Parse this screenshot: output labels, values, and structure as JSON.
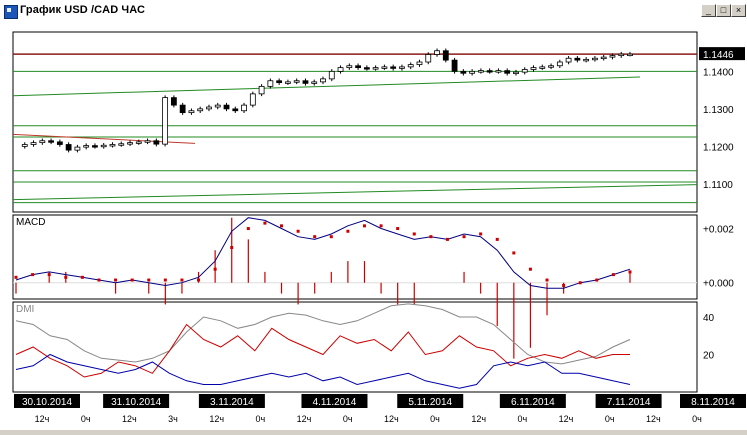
{
  "window": {
    "title": "График USD /CAD  ЧАС",
    "buttons": [
      "_",
      "□",
      "×"
    ]
  },
  "chart_data": [
    {
      "type": "candlestick",
      "title": "",
      "ylim": [
        1.1025,
        1.1505
      ],
      "yticks": [
        1.11,
        1.12,
        1.13,
        1.14
      ],
      "ytick_labels": [
        "1.1100",
        "1.1200",
        "1.1300",
        "1.1400"
      ],
      "current_price": 1.1446,
      "current_price_label": "1.1446",
      "colors": {
        "price_line": "#8b1a1a",
        "level_lines": "#228b22",
        "red_trend": "#c0392b",
        "candles": "#000000"
      },
      "price_path": [
        1.12,
        1.1205,
        1.121,
        1.1215,
        1.1212,
        1.1205,
        1.119,
        1.1198,
        1.1202,
        1.12,
        1.1203,
        1.1205,
        1.1207,
        1.121,
        1.1212,
        1.1215,
        1.1206,
        1.133,
        1.131,
        1.129,
        1.1295,
        1.13,
        1.1305,
        1.131,
        1.13,
        1.1295,
        1.131,
        1.134,
        1.136,
        1.1375,
        1.137,
        1.1372,
        1.1375,
        1.1368,
        1.1372,
        1.138,
        1.14,
        1.141,
        1.1415,
        1.141,
        1.1408,
        1.141,
        1.1412,
        1.1408,
        1.1412,
        1.1418,
        1.1425,
        1.1445,
        1.1455,
        1.143,
        1.14,
        1.1395,
        1.14,
        1.1402,
        1.14,
        1.1402,
        1.1395,
        1.1398,
        1.1405,
        1.141,
        1.1412,
        1.1415,
        1.1425,
        1.1435,
        1.143,
        1.1432,
        1.1435,
        1.1438,
        1.1442,
        1.1446,
        1.1446
      ],
      "horizontal_levels": [
        1.1446,
        1.14,
        1.1255,
        1.1225,
        1.1135,
        1.1105,
        1.105
      ]
    },
    {
      "type": "macd",
      "label": "MACD",
      "ylim": [
        -0.0006,
        0.0025
      ],
      "yticks": [
        0.002,
        0.0
      ],
      "ytick_labels": [
        "+0.002",
        "+0.000"
      ],
      "macd": [
        0.0001,
        0.0003,
        0.0004,
        0.0003,
        0.0002,
        0.0001,
        0.0,
        0.0001,
        0.0,
        -0.0001,
        0.0,
        0.0002,
        0.0008,
        0.0019,
        0.0024,
        0.0023,
        0.002,
        0.0017,
        0.0016,
        0.0018,
        0.0021,
        0.0023,
        0.002,
        0.0018,
        0.0016,
        0.0017,
        0.0016,
        0.0018,
        0.0017,
        0.0012,
        0.0004,
        -0.0001,
        -0.0002,
        -0.0002,
        0.0,
        0.0001,
        0.0003,
        0.0005
      ],
      "signal": [
        0.0002,
        0.0003,
        0.0003,
        0.0002,
        0.0002,
        0.0001,
        0.0001,
        0.0001,
        0.0001,
        0.0001,
        0.0001,
        0.0001,
        0.0005,
        0.0013,
        0.002,
        0.0022,
        0.0021,
        0.0019,
        0.0017,
        0.0017,
        0.0019,
        0.0021,
        0.0021,
        0.002,
        0.0018,
        0.0017,
        0.0016,
        0.0017,
        0.0018,
        0.0016,
        0.0011,
        0.0005,
        0.0001,
        -0.0001,
        0.0,
        0.0001,
        0.0003,
        0.0004
      ],
      "colors": {
        "macd": "#000080",
        "signal": "#cc0000",
        "histogram": "#cc0000"
      }
    },
    {
      "type": "dmi",
      "label": "DMI",
      "ylim": [
        0,
        48
      ],
      "yticks": [
        40,
        20
      ],
      "ytick_labels": [
        "40",
        "20"
      ],
      "adx": [
        38,
        36,
        30,
        28,
        22,
        18,
        17,
        16,
        18,
        22,
        32,
        40,
        38,
        34,
        36,
        40,
        42,
        41,
        38,
        36,
        38,
        42,
        46,
        47,
        46,
        44,
        40,
        40,
        36,
        28,
        20,
        16,
        15,
        17,
        19,
        24,
        28
      ],
      "plus_di": [
        20,
        24,
        18,
        14,
        8,
        10,
        16,
        14,
        10,
        22,
        36,
        28,
        24,
        30,
        22,
        34,
        28,
        24,
        20,
        30,
        26,
        28,
        22,
        32,
        20,
        22,
        30,
        24,
        22,
        14,
        18,
        20,
        18,
        22,
        18,
        20,
        20
      ],
      "minus_di": [
        12,
        14,
        20,
        16,
        14,
        12,
        10,
        12,
        16,
        10,
        6,
        4,
        4,
        6,
        8,
        10,
        8,
        10,
        6,
        8,
        4,
        6,
        8,
        10,
        6,
        4,
        2,
        4,
        14,
        16,
        14,
        16,
        10,
        10,
        8,
        6,
        4
      ],
      "colors": {
        "adx": "#888888",
        "plus_di": "#cc0000",
        "minus_di": "#0000aa"
      }
    }
  ],
  "time_axis": {
    "dates": [
      {
        "label": "30.10.2014",
        "pos": 0.04
      },
      {
        "label": "31.10.2014",
        "pos": 0.18
      },
      {
        "label": "3.11.2014",
        "pos": 0.32
      },
      {
        "label": "4.11.2014",
        "pos": 0.47
      },
      {
        "label": "5.11.2014",
        "pos": 0.61
      },
      {
        "label": "6.11.2014",
        "pos": 0.76
      },
      {
        "label": "7.11.2014",
        "pos": 0.9
      },
      {
        "label": "8.11.2014",
        "pos": 1.04
      }
    ],
    "hours": [
      "12ч",
      "0ч",
      "12ч",
      "3ч",
      "12ч",
      "0ч",
      "12ч",
      "0ч",
      "12ч",
      "0ч",
      "12ч",
      "0ч",
      "12ч",
      "0ч",
      "12ч",
      "0ч"
    ]
  }
}
